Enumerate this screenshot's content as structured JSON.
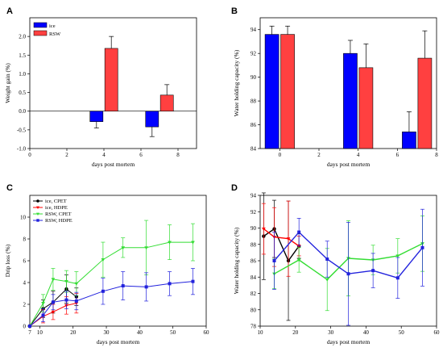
{
  "chart_data": [
    {
      "panel": "A",
      "type": "bar",
      "xlabel": "days post mortem",
      "ylabel": "Weight gain (%)",
      "xlim": [
        0,
        9
      ],
      "ylim": [
        -1.0,
        2.5
      ],
      "xticks": [
        0,
        2,
        4,
        6,
        8
      ],
      "yticks": [
        -1.0,
        -0.5,
        0.0,
        0.5,
        1.0,
        1.5,
        2.0
      ],
      "ytick_labels": [
        "-1.0",
        "-0.5",
        "0.0",
        "0.5",
        "1.0",
        "1.5",
        "2.0"
      ],
      "zero_line": true,
      "legend": "top-left",
      "bar_width": 0.7,
      "series": [
        {
          "name": "ice",
          "color": "#0000ff",
          "x": [
            3.6,
            6.6
          ],
          "values": [
            -0.28,
            -0.42
          ],
          "err": [
            0.17,
            0.26
          ]
        },
        {
          "name": "RSW",
          "color": "#ff4040",
          "x": [
            4.4,
            7.4
          ],
          "values": [
            1.68,
            0.43
          ],
          "err": [
            0.32,
            0.28
          ]
        }
      ]
    },
    {
      "panel": "B",
      "type": "bar",
      "xlabel": "days post mortem",
      "ylabel": "Water holding capacity (%)",
      "xlim": [
        -1,
        8
      ],
      "ylim": [
        84,
        95
      ],
      "xticks": [
        0,
        2,
        4,
        6,
        8
      ],
      "yticks": [
        84,
        86,
        88,
        90,
        92,
        94
      ],
      "ytick_labels": [
        "84",
        "86",
        "88",
        "90",
        "92",
        "94"
      ],
      "bar_width": 0.7,
      "series": [
        {
          "name": "ice",
          "color": "#0000ff",
          "x": [
            -0.4,
            3.6,
            6.6
          ],
          "values": [
            93.6,
            92.0,
            85.4
          ],
          "err": [
            0.7,
            1.1,
            1.7
          ]
        },
        {
          "name": "RSW",
          "color": "#ff4040",
          "x": [
            0.4,
            4.4,
            7.4
          ],
          "values": [
            93.6,
            90.8,
            91.6
          ],
          "err": [
            0.7,
            2.0,
            2.3
          ]
        }
      ]
    },
    {
      "panel": "C",
      "type": "line",
      "xlabel": "days post mortem",
      "ylabel": "Drip loss (%)",
      "xlim": [
        7,
        60
      ],
      "ylim": [
        0,
        12
      ],
      "xticks": [
        7,
        10,
        20,
        30,
        40,
        50,
        60
      ],
      "yticks": [
        0,
        2,
        4,
        6,
        8,
        10
      ],
      "ytick_labels": [
        "0",
        "2",
        "4",
        "6",
        "8",
        "10"
      ],
      "legend": "top-left",
      "series": [
        {
          "name": "ice, CPET",
          "color": "#000000",
          "marker": "circle",
          "x": [
            7,
            11,
            14,
            18,
            21
          ],
          "values": [
            0.0,
            1.6,
            2.2,
            3.4,
            2.7
          ],
          "err": [
            0.0,
            0.8,
            1.0,
            1.3,
            0.8
          ]
        },
        {
          "name": "ice, HDPE",
          "color": "#ff0000",
          "marker": "tri-down",
          "x": [
            7,
            11,
            14,
            18,
            21
          ],
          "values": [
            0.0,
            0.9,
            1.3,
            1.9,
            2.1
          ],
          "err": [
            0.0,
            0.6,
            0.7,
            0.8,
            0.9
          ]
        },
        {
          "name": "RSW, CPET",
          "color": "#33dd33",
          "marker": "tri-down",
          "x": [
            7,
            11,
            14,
            18,
            21,
            29,
            35,
            42,
            49,
            56
          ],
          "values": [
            0.0,
            2.1,
            4.3,
            4.1,
            3.9,
            6.1,
            7.2,
            7.2,
            7.7,
            7.7
          ],
          "err": [
            0.0,
            0.8,
            1.0,
            1.0,
            1.1,
            1.6,
            0.9,
            2.5,
            1.6,
            1.7
          ]
        },
        {
          "name": "RSW, HDPE",
          "color": "#2222dd",
          "marker": "square",
          "x": [
            7,
            11,
            14,
            18,
            21,
            29,
            35,
            42,
            49,
            56
          ],
          "values": [
            0.0,
            1.0,
            2.2,
            2.4,
            2.3,
            3.2,
            3.7,
            3.6,
            3.9,
            4.1
          ],
          "err": [
            0.0,
            0.6,
            0.7,
            0.8,
            0.8,
            1.2,
            1.3,
            1.3,
            1.1,
            1.2
          ]
        }
      ]
    },
    {
      "panel": "D",
      "type": "line",
      "xlabel": "days post mortem",
      "ylabel": "Water holding capacity (%)",
      "xlim": [
        10,
        60
      ],
      "ylim": [
        78,
        94
      ],
      "xticks": [
        10,
        20,
        30,
        40,
        50,
        60
      ],
      "yticks": [
        78,
        80,
        82,
        84,
        86,
        88,
        90,
        92,
        94
      ],
      "ytick_labels": [
        "78",
        "80",
        "82",
        "84",
        "86",
        "88",
        "90",
        "92",
        "94"
      ],
      "series": [
        {
          "name": "ice, CPET",
          "color": "#000000",
          "marker": "circle",
          "x": [
            11,
            14,
            18,
            21
          ],
          "values": [
            89.0,
            89.9,
            86.0,
            87.8
          ],
          "err": [
            5.3,
            3.5,
            7.3,
            1.5
          ]
        },
        {
          "name": "ice, HDPE",
          "color": "#ff0000",
          "marker": "tri-down",
          "x": [
            11,
            14,
            18,
            21
          ],
          "values": [
            89.9,
            88.9,
            88.7,
            87.8
          ],
          "err": [
            3.1,
            3.6,
            4.6,
            1.2
          ]
        },
        {
          "name": "RSW, CPET",
          "color": "#33dd33",
          "marker": "tri-down",
          "x": [
            14,
            21,
            29,
            35,
            42,
            49,
            56
          ],
          "values": [
            84.4,
            86.1,
            83.7,
            86.3,
            86.1,
            86.6,
            88.1
          ],
          "err": [
            1.8,
            1.5,
            3.8,
            4.6,
            1.8,
            2.1,
            3.4
          ]
        },
        {
          "name": "RSW, HDPE",
          "color": "#2222dd",
          "marker": "square",
          "x": [
            14,
            21,
            29,
            35,
            42,
            49,
            56
          ],
          "values": [
            86.0,
            89.5,
            86.2,
            84.4,
            84.8,
            83.9,
            87.6
          ],
          "err": [
            3.5,
            1.7,
            2.2,
            6.3,
            2.1,
            2.5,
            4.7
          ]
        }
      ]
    }
  ]
}
